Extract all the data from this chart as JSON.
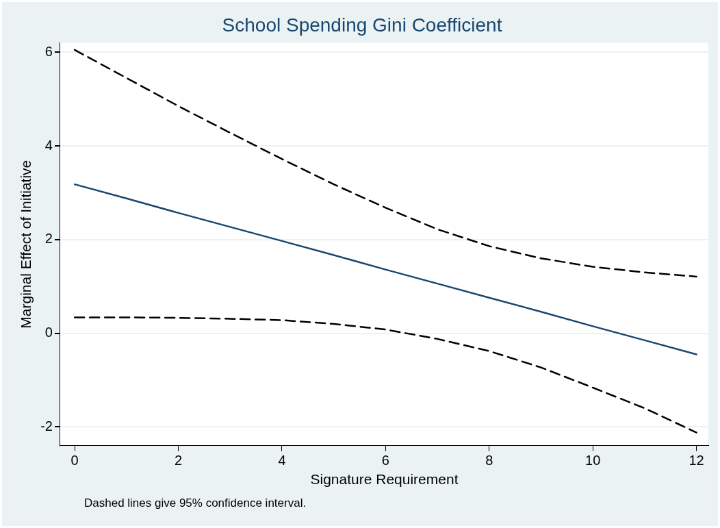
{
  "chart_data": {
    "type": "line",
    "title": "School Spending Gini Coefficient",
    "xlabel": "Signature Requirement",
    "ylabel": "Marginal Effect of Initiative",
    "annotations": [
      "Dashed lines give 95% confidence interval."
    ],
    "x": [
      0,
      1,
      2,
      3,
      4,
      5,
      6,
      7,
      8,
      9,
      10,
      11,
      12
    ],
    "series": [
      {
        "color": "#1a476f",
        "line_style": "solid",
        "values": [
          3.18,
          2.88,
          2.57,
          2.27,
          1.97,
          1.67,
          1.36,
          1.06,
          0.76,
          0.46,
          0.15,
          -0.15,
          -0.45
        ]
      },
      {
        "color": "#000000",
        "line_style": "dashed",
        "values": [
          6.05,
          5.45,
          4.85,
          4.28,
          3.72,
          3.18,
          2.68,
          2.22,
          1.86,
          1.6,
          1.42,
          1.3,
          1.21
        ]
      },
      {
        "color": "#000000",
        "line_style": "dashed",
        "values": [
          0.34,
          0.34,
          0.33,
          0.31,
          0.28,
          0.2,
          0.08,
          -0.12,
          -0.38,
          -0.73,
          -1.16,
          -1.6,
          -2.12
        ]
      }
    ],
    "xlim": [
      -0.28,
      12.23
    ],
    "xticks": [
      0,
      2,
      4,
      6,
      8,
      10,
      12
    ],
    "ylim": [
      -2.4,
      6.2
    ],
    "yticks": [
      -2,
      0,
      2,
      4,
      6
    ],
    "grid": "y",
    "legend": false,
    "marker": "none"
  }
}
